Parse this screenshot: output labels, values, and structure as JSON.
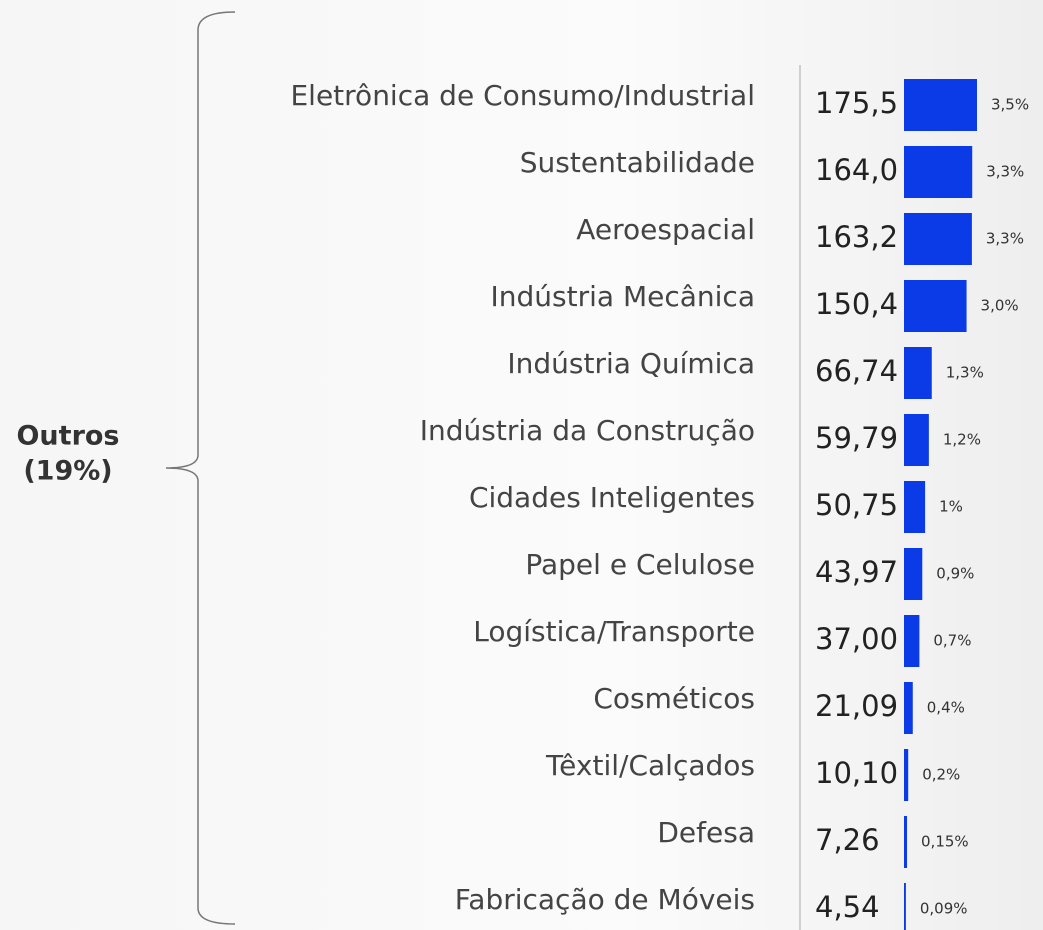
{
  "chart_data": {
    "type": "bar",
    "orientation": "horizontal",
    "group_label": [
      "Outros",
      "(19%)"
    ],
    "categories": [
      "Eletrônica de Consumo/Industrial",
      "Sustentabilidade",
      "Aeroespacial",
      "Indústria Mecânica",
      "Indústria Química",
      "Indústria da Construção",
      "Cidades Inteligentes",
      "Papel e Celulose",
      "Logística/Transporte",
      "Cosméticos",
      "Têxtil/Calçados",
      "Defesa",
      "Fabricação de Móveis"
    ],
    "values": [
      175.5,
      164.0,
      163.2,
      150.4,
      66.74,
      59.79,
      50.75,
      43.97,
      37.0,
      21.09,
      10.1,
      7.26,
      4.54
    ],
    "value_labels": [
      "175,5",
      "164,0",
      "163,2",
      "150,4",
      "66,74",
      "59,79",
      "50,75",
      "43,97",
      "37,00",
      "21,09",
      "10,10",
      "7,26",
      "4,54"
    ],
    "share_labels": [
      "3,5%",
      "3,3%",
      "3,3%",
      "3,0%",
      "1,3%",
      "1,2%",
      "1%",
      "0,9%",
      "0,7%",
      "0,4%",
      "0,2%",
      "0,15%",
      "0,09%"
    ],
    "color": "#0b3be6"
  }
}
